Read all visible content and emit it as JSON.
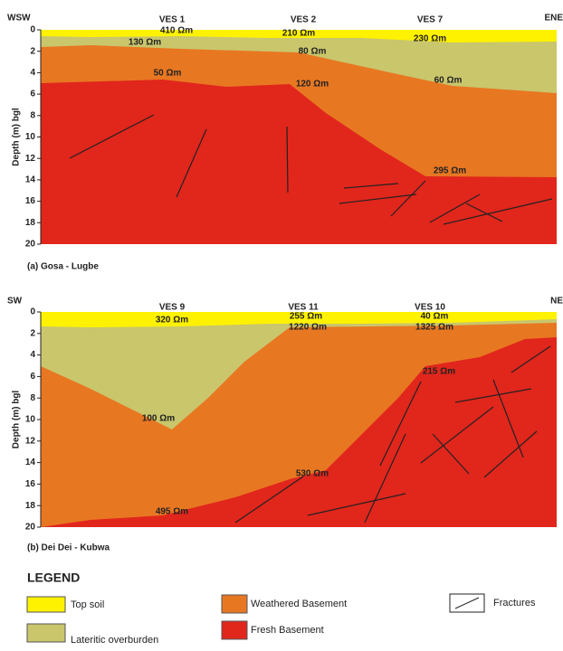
{
  "panels": [
    {
      "left_label": "WSW",
      "right_label": "ENE",
      "stations": [
        "VES 1",
        "VES 2",
        "VES 7"
      ],
      "resistivities": [
        "410 Ωm",
        "130 Ωm",
        "50 Ωm",
        "210 Ωm",
        "80 Ωm",
        "120 Ωm",
        "230 Ωm",
        "60 Ωm",
        "295 Ωm"
      ],
      "y_axis_label": "Depth (m) bgl",
      "depth_ticks": [
        0,
        2,
        4,
        6,
        8,
        10,
        12,
        14,
        16,
        18,
        20
      ],
      "caption": "(a) Gosa - Lugbe"
    },
    {
      "left_label": "SW",
      "right_label": "NE",
      "stations": [
        "VES 9",
        "VES 11",
        "VES 10"
      ],
      "resistivities": [
        "320 Ωm",
        "255 Ωm",
        "1220 Ωm",
        "40 Ωm",
        "1325 Ωm",
        "100 Ωm",
        "215 Ωm",
        "530 Ωm",
        "495 Ωm"
      ],
      "y_axis_label": "Depth (m) bgl",
      "depth_ticks": [
        0,
        2,
        4,
        6,
        8,
        10,
        12,
        14,
        16,
        18,
        20
      ],
      "caption": "(b) Dei Dei - Kubwa"
    }
  ],
  "legend": {
    "title": "LEGEND",
    "items": [
      "Top soil",
      "Weathered Basement",
      "Fractures",
      "Lateritic overburden",
      "Fresh Basement"
    ]
  }
}
